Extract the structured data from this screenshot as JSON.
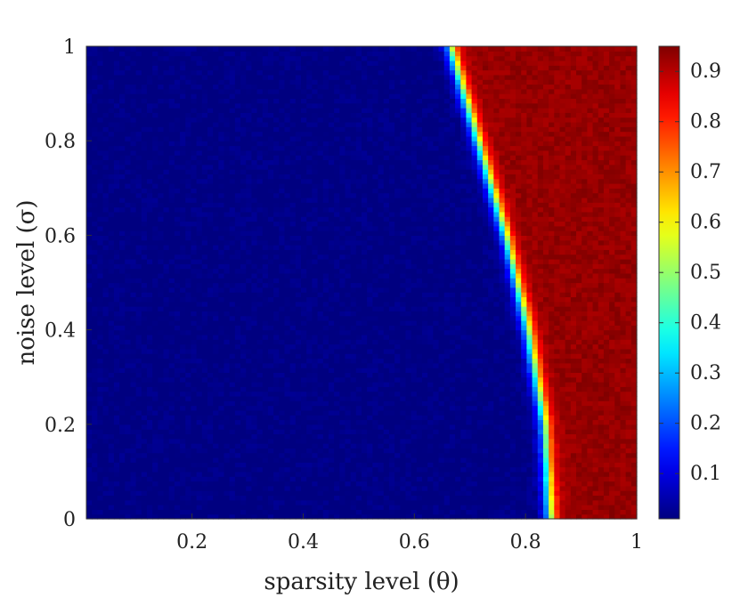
{
  "chart_data": {
    "type": "heatmap",
    "title": "",
    "xlabel": "sparsity level (θ)",
    "ylabel": "noise level (σ)",
    "xlim": [
      0.01,
      1.0
    ],
    "ylim": [
      0,
      1
    ],
    "x_ticks": [
      "0.2",
      "0.4",
      "0.6",
      "0.8",
      "1"
    ],
    "x_tick_values": [
      0.2,
      0.4,
      0.6,
      0.8,
      1.0
    ],
    "y_ticks": [
      "0",
      "0.2",
      "0.4",
      "0.6",
      "0.8",
      "1"
    ],
    "y_tick_values": [
      0,
      0.2,
      0.4,
      0.6,
      0.8,
      1.0
    ],
    "colormap": "jet",
    "colorbar": {
      "range": [
        0.01,
        0.95
      ],
      "ticks": [
        "0.1",
        "0.2",
        "0.3",
        "0.4",
        "0.5",
        "0.6",
        "0.7",
        "0.8",
        "0.9"
      ],
      "tick_values": [
        0.1,
        0.2,
        0.3,
        0.4,
        0.5,
        0.6,
        0.7,
        0.8,
        0.9
      ]
    },
    "grid": false,
    "phase_boundary": {
      "noise": [
        0.0,
        0.1,
        0.2,
        0.3,
        0.4,
        0.5,
        0.6,
        0.7,
        0.8,
        0.9,
        1.0
      ],
      "sparsity": [
        0.845,
        0.84,
        0.835,
        0.82,
        0.805,
        0.785,
        0.765,
        0.74,
        0.715,
        0.69,
        0.665
      ]
    },
    "value_below_boundary": 0.01,
    "value_above_boundary": 0.93
  }
}
